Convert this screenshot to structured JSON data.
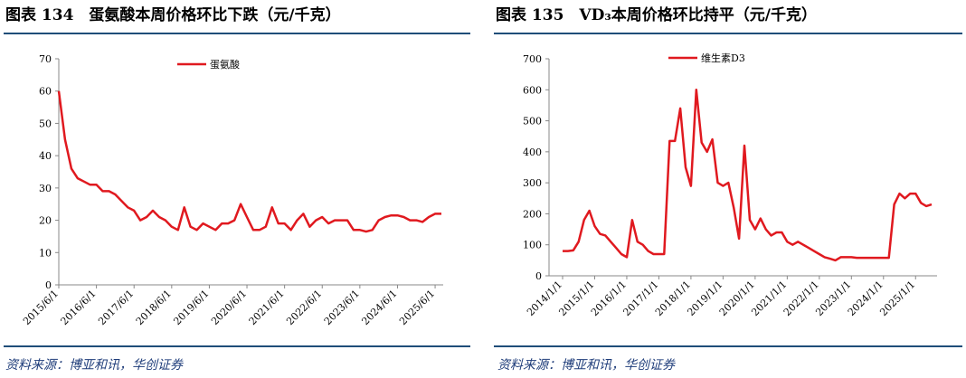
{
  "chart_data": [
    {
      "type": "line",
      "title": "图表 134　蛋氨酸本周价格环比下跌（元/千克）",
      "source": "资料来源：博亚和讯，华创证券",
      "categories": [
        "2015/6/1",
        null,
        null,
        null,
        null,
        null,
        "2016/6/1",
        null,
        null,
        null,
        null,
        null,
        "2017/6/1",
        null,
        null,
        null,
        null,
        null,
        "2018/6/1",
        null,
        null,
        null,
        null,
        null,
        "2019/6/1",
        null,
        null,
        null,
        null,
        null,
        "2020/6/1",
        null,
        null,
        null,
        null,
        null,
        "2021/6/1",
        null,
        null,
        null,
        null,
        null,
        "2022/6/1",
        null,
        null,
        null,
        null,
        null,
        "2023/6/1",
        null,
        null,
        null,
        null,
        null,
        "2024/6/1",
        null,
        null,
        null,
        null,
        null,
        "2025/6/1",
        null
      ],
      "series": [
        {
          "name": "蛋氨酸",
          "color": "#e0191f",
          "values": [
            60,
            45,
            36,
            33,
            32,
            31,
            31,
            29,
            29,
            28,
            26,
            24,
            23,
            20,
            21,
            23,
            21,
            20,
            18,
            17,
            24,
            18,
            17,
            19,
            18,
            17,
            19,
            19,
            20,
            25,
            21,
            17,
            17,
            18,
            24,
            19,
            19,
            17,
            20,
            22,
            18,
            20,
            21,
            19,
            20,
            20,
            20,
            17,
            17,
            16.5,
            17,
            20,
            21,
            21.5,
            21.5,
            21,
            20,
            20,
            19.5,
            21,
            22,
            22
          ]
        }
      ],
      "ylim": [
        0,
        70
      ],
      "yticks": [
        0,
        10,
        20,
        30,
        40,
        50,
        60,
        70
      ],
      "grid": false,
      "legend": "top"
    },
    {
      "type": "line",
      "title": "图表 135　VD₃本周价格环比持平（元/千克）",
      "source": "资料来源：博亚和讯，华创证券",
      "categories": [
        "2014/1/1",
        null,
        null,
        null,
        null,
        null,
        "2015/1/1",
        null,
        null,
        null,
        null,
        null,
        "2016/1/1",
        null,
        null,
        null,
        null,
        null,
        "2017/1/1",
        null,
        null,
        null,
        null,
        null,
        "2018/1/1",
        null,
        null,
        null,
        null,
        null,
        "2019/1/1",
        null,
        null,
        null,
        null,
        null,
        "2020/1/1",
        null,
        null,
        null,
        null,
        null,
        "2021/1/1",
        null,
        null,
        null,
        null,
        null,
        "2022/1/1",
        null,
        null,
        null,
        null,
        null,
        "2023/1/1",
        null,
        null,
        null,
        null,
        null,
        "2024/1/1",
        null,
        null,
        null,
        null,
        null,
        "2025/1/1",
        null,
        null,
        null
      ],
      "series": [
        {
          "name": "维生素D3",
          "color": "#e0191f",
          "values": [
            80,
            80,
            82,
            110,
            180,
            210,
            160,
            135,
            130,
            110,
            90,
            70,
            60,
            180,
            110,
            100,
            80,
            70,
            70,
            70,
            435,
            435,
            540,
            350,
            290,
            600,
            430,
            400,
            440,
            300,
            290,
            300,
            220,
            120,
            420,
            180,
            150,
            185,
            150,
            130,
            140,
            140,
            110,
            100,
            110,
            100,
            90,
            80,
            70,
            60,
            55,
            50,
            60,
            60,
            60,
            58,
            58,
            58,
            58,
            58,
            58,
            58,
            230,
            265,
            250,
            265,
            265,
            235,
            225,
            230
          ]
        }
      ],
      "ylim": [
        0,
        700
      ],
      "yticks": [
        0,
        100,
        200,
        300,
        400,
        500,
        600,
        700
      ],
      "grid": false,
      "legend": "top"
    }
  ]
}
